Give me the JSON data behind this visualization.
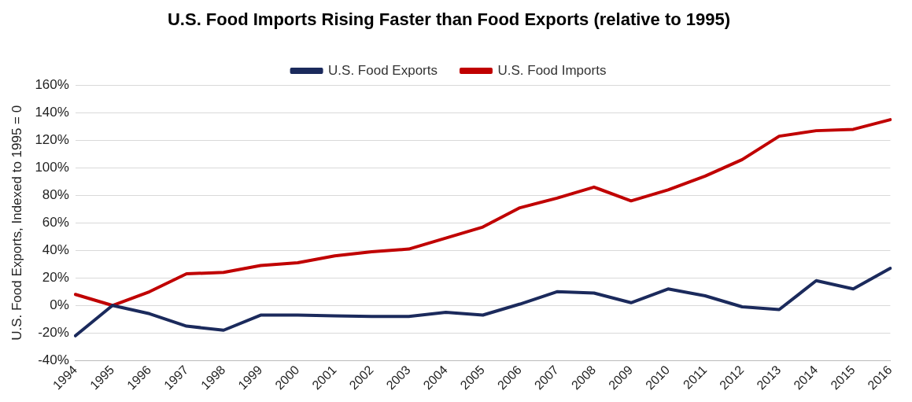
{
  "chart_data": {
    "type": "line",
    "title": "U.S. Food Imports Rising Faster than Food Exports (relative to 1995)",
    "ylabel": "U.S. Food Exports, Indexed to 1995 = 0",
    "categories": [
      "1994",
      "1995",
      "1996",
      "1997",
      "1998",
      "1999",
      "2000",
      "2001",
      "2002",
      "2003",
      "2004",
      "2005",
      "2006",
      "2007",
      "2008",
      "2009",
      "2010",
      "2011",
      "2012",
      "2013",
      "2014",
      "2015",
      "2016"
    ],
    "series": [
      {
        "name": "U.S. Food Exports",
        "color": "#1b2a5c",
        "values": [
          -22,
          0,
          -6,
          -15,
          -18,
          -7,
          -7,
          -7.5,
          -8,
          -8,
          -5,
          -7,
          1,
          10,
          9,
          2,
          12,
          7,
          -1,
          -3,
          18,
          12,
          27
        ]
      },
      {
        "name": "U.S. Food Imports",
        "color": "#c00000",
        "values": [
          8,
          0,
          10,
          23,
          24,
          29,
          31,
          36,
          39,
          41,
          49,
          57,
          71,
          78,
          86,
          76,
          84,
          94,
          106,
          123,
          127,
          128,
          135
        ]
      }
    ],
    "ylim": [
      -40,
      160
    ],
    "yticks": [
      {
        "value": -40,
        "label": "-40%"
      },
      {
        "value": -20,
        "label": "-20%"
      },
      {
        "value": 0,
        "label": "0%"
      },
      {
        "value": 20,
        "label": "20%"
      },
      {
        "value": 40,
        "label": "40%"
      },
      {
        "value": 60,
        "label": "60%"
      },
      {
        "value": 80,
        "label": "80%"
      },
      {
        "value": 100,
        "label": "100%"
      },
      {
        "value": 120,
        "label": "120%"
      },
      {
        "value": 140,
        "label": "140%"
      },
      {
        "value": 160,
        "label": "160%"
      }
    ],
    "grid": "y",
    "legend": "top",
    "marker": "none",
    "line_style": "solid"
  }
}
